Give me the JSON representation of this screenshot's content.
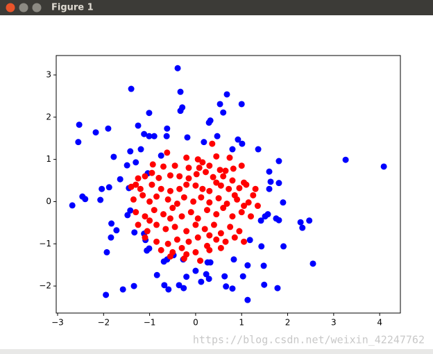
{
  "window": {
    "title": "Figure 1",
    "watermark": "https://blog.csdn.net/weixin_42247762"
  },
  "chart_data": {
    "type": "scatter",
    "xlim": [
      -3.03,
      4.45
    ],
    "ylim": [
      -2.64,
      3.46
    ],
    "xticks": [
      {
        "value": -3,
        "label": "−3"
      },
      {
        "value": -2,
        "label": "−2"
      },
      {
        "value": -1,
        "label": "−1"
      },
      0,
      1,
      2,
      3,
      4
    ],
    "yticks": [
      {
        "value": -2,
        "label": "−2"
      },
      {
        "value": -1,
        "label": "−1"
      },
      0,
      1,
      2,
      3
    ],
    "series": [
      {
        "color": "#0000ff",
        "x": [
          -0.39,
          -1.4,
          -0.33,
          0.68,
          -0.29,
          -0.33,
          0.53,
          1.0,
          -1.01,
          0.6,
          0.32,
          0.29,
          -2.53,
          -1.9,
          -2.17,
          -1.25,
          -0.62,
          -1.12,
          -1.01,
          -0.9,
          -0.63,
          -0.18,
          0.47,
          0.92,
          -2.55,
          0.18,
          1.01,
          -1.19,
          0.8,
          -1.42,
          1.36,
          -1.78,
          -0.75,
          1.81,
          -1.3,
          -1.49,
          3.26,
          4.09,
          1.6,
          -1.04,
          -1.64,
          1.81,
          1.63,
          -2.04,
          -1.88,
          1.6,
          -1.45,
          -2.46,
          -2.4,
          -2.07,
          -2.68,
          1.9,
          -1.42,
          -1.48,
          1.57,
          1.51,
          1.42,
          1.75,
          1.81,
          -1.83,
          2.28,
          2.47,
          2.32,
          -1.72,
          -1.33,
          -1.12,
          -1.84,
          -1.09,
          1.18,
          1.43,
          1.91,
          -1.93,
          -1.06,
          -1.01,
          -0.48,
          -0.69,
          -0.62,
          -0.27,
          0.83,
          0.26,
          0.32,
          1.13,
          1.48,
          0.0,
          2.55,
          -0.84,
          -0.2,
          0.23,
          0.12,
          0.29,
          0.63,
          1.03,
          -1.34,
          -1.58,
          -0.68,
          -0.59,
          -0.36,
          -0.26,
          0.66,
          0.8,
          1.49,
          1.78,
          -1.95,
          1.13
        ],
        "values": [
          3.16,
          2.67,
          2.6,
          2.54,
          2.23,
          2.15,
          2.31,
          2.31,
          2.1,
          2.11,
          1.92,
          1.87,
          1.82,
          1.73,
          1.64,
          1.8,
          1.73,
          1.6,
          1.55,
          1.55,
          1.55,
          1.52,
          1.55,
          1.47,
          1.41,
          1.41,
          1.37,
          1.24,
          1.24,
          1.19,
          1.24,
          1.06,
          1.09,
          0.96,
          0.93,
          0.86,
          0.99,
          0.83,
          0.71,
          0.67,
          0.53,
          0.44,
          0.47,
          0.3,
          0.34,
          0.3,
          0.32,
          0.12,
          0.06,
          0.04,
          -0.09,
          -0.02,
          -0.21,
          -0.32,
          -0.3,
          -0.35,
          -0.45,
          -0.4,
          -0.44,
          -0.52,
          -0.49,
          -0.45,
          -0.62,
          -0.68,
          -0.73,
          -0.76,
          -0.85,
          -0.91,
          -0.91,
          -1.06,
          -1.06,
          -1.2,
          -1.16,
          -1.11,
          -1.27,
          -1.42,
          -1.37,
          -1.37,
          -1.37,
          -1.44,
          -1.44,
          -1.51,
          -1.52,
          -1.64,
          -1.47,
          -1.74,
          -1.78,
          -1.72,
          -1.9,
          -1.83,
          -1.77,
          -1.77,
          -2.0,
          -2.08,
          -1.98,
          -2.08,
          -1.98,
          -2.05,
          -2.01,
          -2.06,
          -1.97,
          -2.05,
          -2.21,
          -2.33
        ]
      },
      {
        "color": "#ff0000",
        "x": [
          0.36,
          -0.62,
          -0.2,
          0.05,
          0.45,
          0.74,
          0.15,
          -0.93,
          -0.7,
          -0.15,
          0.08,
          0.3,
          0.53,
          0.65,
          0.82,
          1.0,
          -0.45,
          -1.25,
          -1.1,
          -0.95,
          -0.8,
          -0.55,
          -0.35,
          -0.15,
          0.02,
          0.22,
          0.38,
          0.6,
          0.8,
          1.05,
          -1.3,
          0.45,
          -1.4,
          -1.2,
          -0.95,
          -0.75,
          -0.55,
          -0.35,
          -0.2,
          0.0,
          0.15,
          0.3,
          0.55,
          0.72,
          0.95,
          1.1,
          1.3,
          -1.15,
          0.85,
          -1.35,
          -1.0,
          -0.85,
          -0.6,
          -0.4,
          -0.25,
          -0.05,
          0.12,
          0.3,
          0.5,
          0.68,
          0.9,
          1.15,
          1.25,
          1.35,
          -1.3,
          -1.1,
          -0.9,
          -0.7,
          -0.5,
          -0.3,
          -0.1,
          0.05,
          0.25,
          0.45,
          0.6,
          0.8,
          1.0,
          1.2,
          1.05,
          -0.55,
          -1.25,
          -1.05,
          -0.85,
          -0.65,
          -0.45,
          -0.2,
          0.0,
          0.2,
          0.4,
          0.55,
          0.75,
          0.95,
          -1.0,
          0.3,
          -1.1,
          -0.85,
          -0.6,
          -0.4,
          -0.15,
          0.05,
          0.25,
          0.45,
          0.65,
          0.85,
          1.05,
          -0.3,
          -0.75,
          -0.5,
          -0.2,
          0.0,
          0.3,
          0.55,
          -0.55,
          0.1,
          -0.25
        ],
        "values": [
          1.37,
          1.16,
          1.04,
          1.0,
          1.07,
          1.04,
          0.93,
          0.88,
          0.83,
          0.8,
          0.8,
          0.85,
          0.75,
          0.73,
          0.78,
          0.85,
          0.85,
          0.55,
          0.6,
          0.68,
          0.56,
          0.62,
          0.6,
          0.55,
          0.65,
          0.7,
          0.58,
          0.6,
          0.5,
          0.45,
          0.4,
          0.45,
          0.35,
          0.3,
          0.4,
          0.3,
          0.25,
          0.3,
          0.4,
          0.38,
          0.3,
          0.25,
          0.38,
          0.3,
          0.32,
          0.4,
          0.3,
          0.15,
          0.15,
          0.05,
          0.0,
          0.12,
          0.05,
          -0.05,
          0.1,
          0.0,
          0.1,
          -0.02,
          0.08,
          -0.05,
          0.05,
          -0.02,
          0.15,
          -0.1,
          -0.25,
          -0.35,
          -0.2,
          -0.3,
          -0.15,
          -0.35,
          -0.25,
          -0.4,
          -0.2,
          -0.3,
          -0.15,
          -0.35,
          -0.25,
          -0.35,
          -0.1,
          -0.4,
          -0.55,
          -0.7,
          -0.55,
          -0.65,
          -0.6,
          -0.7,
          -0.55,
          -0.65,
          -0.55,
          -0.75,
          -0.6,
          -0.7,
          -0.45,
          -0.8,
          -0.85,
          -0.95,
          -1.0,
          -0.9,
          -0.95,
          -0.85,
          -1.05,
          -0.9,
          -0.95,
          -0.85,
          -0.95,
          -1.1,
          -1.15,
          -1.2,
          -1.25,
          -1.2,
          -1.15,
          -1.1,
          -1.3,
          -1.4,
          -1.35
        ]
      }
    ]
  }
}
